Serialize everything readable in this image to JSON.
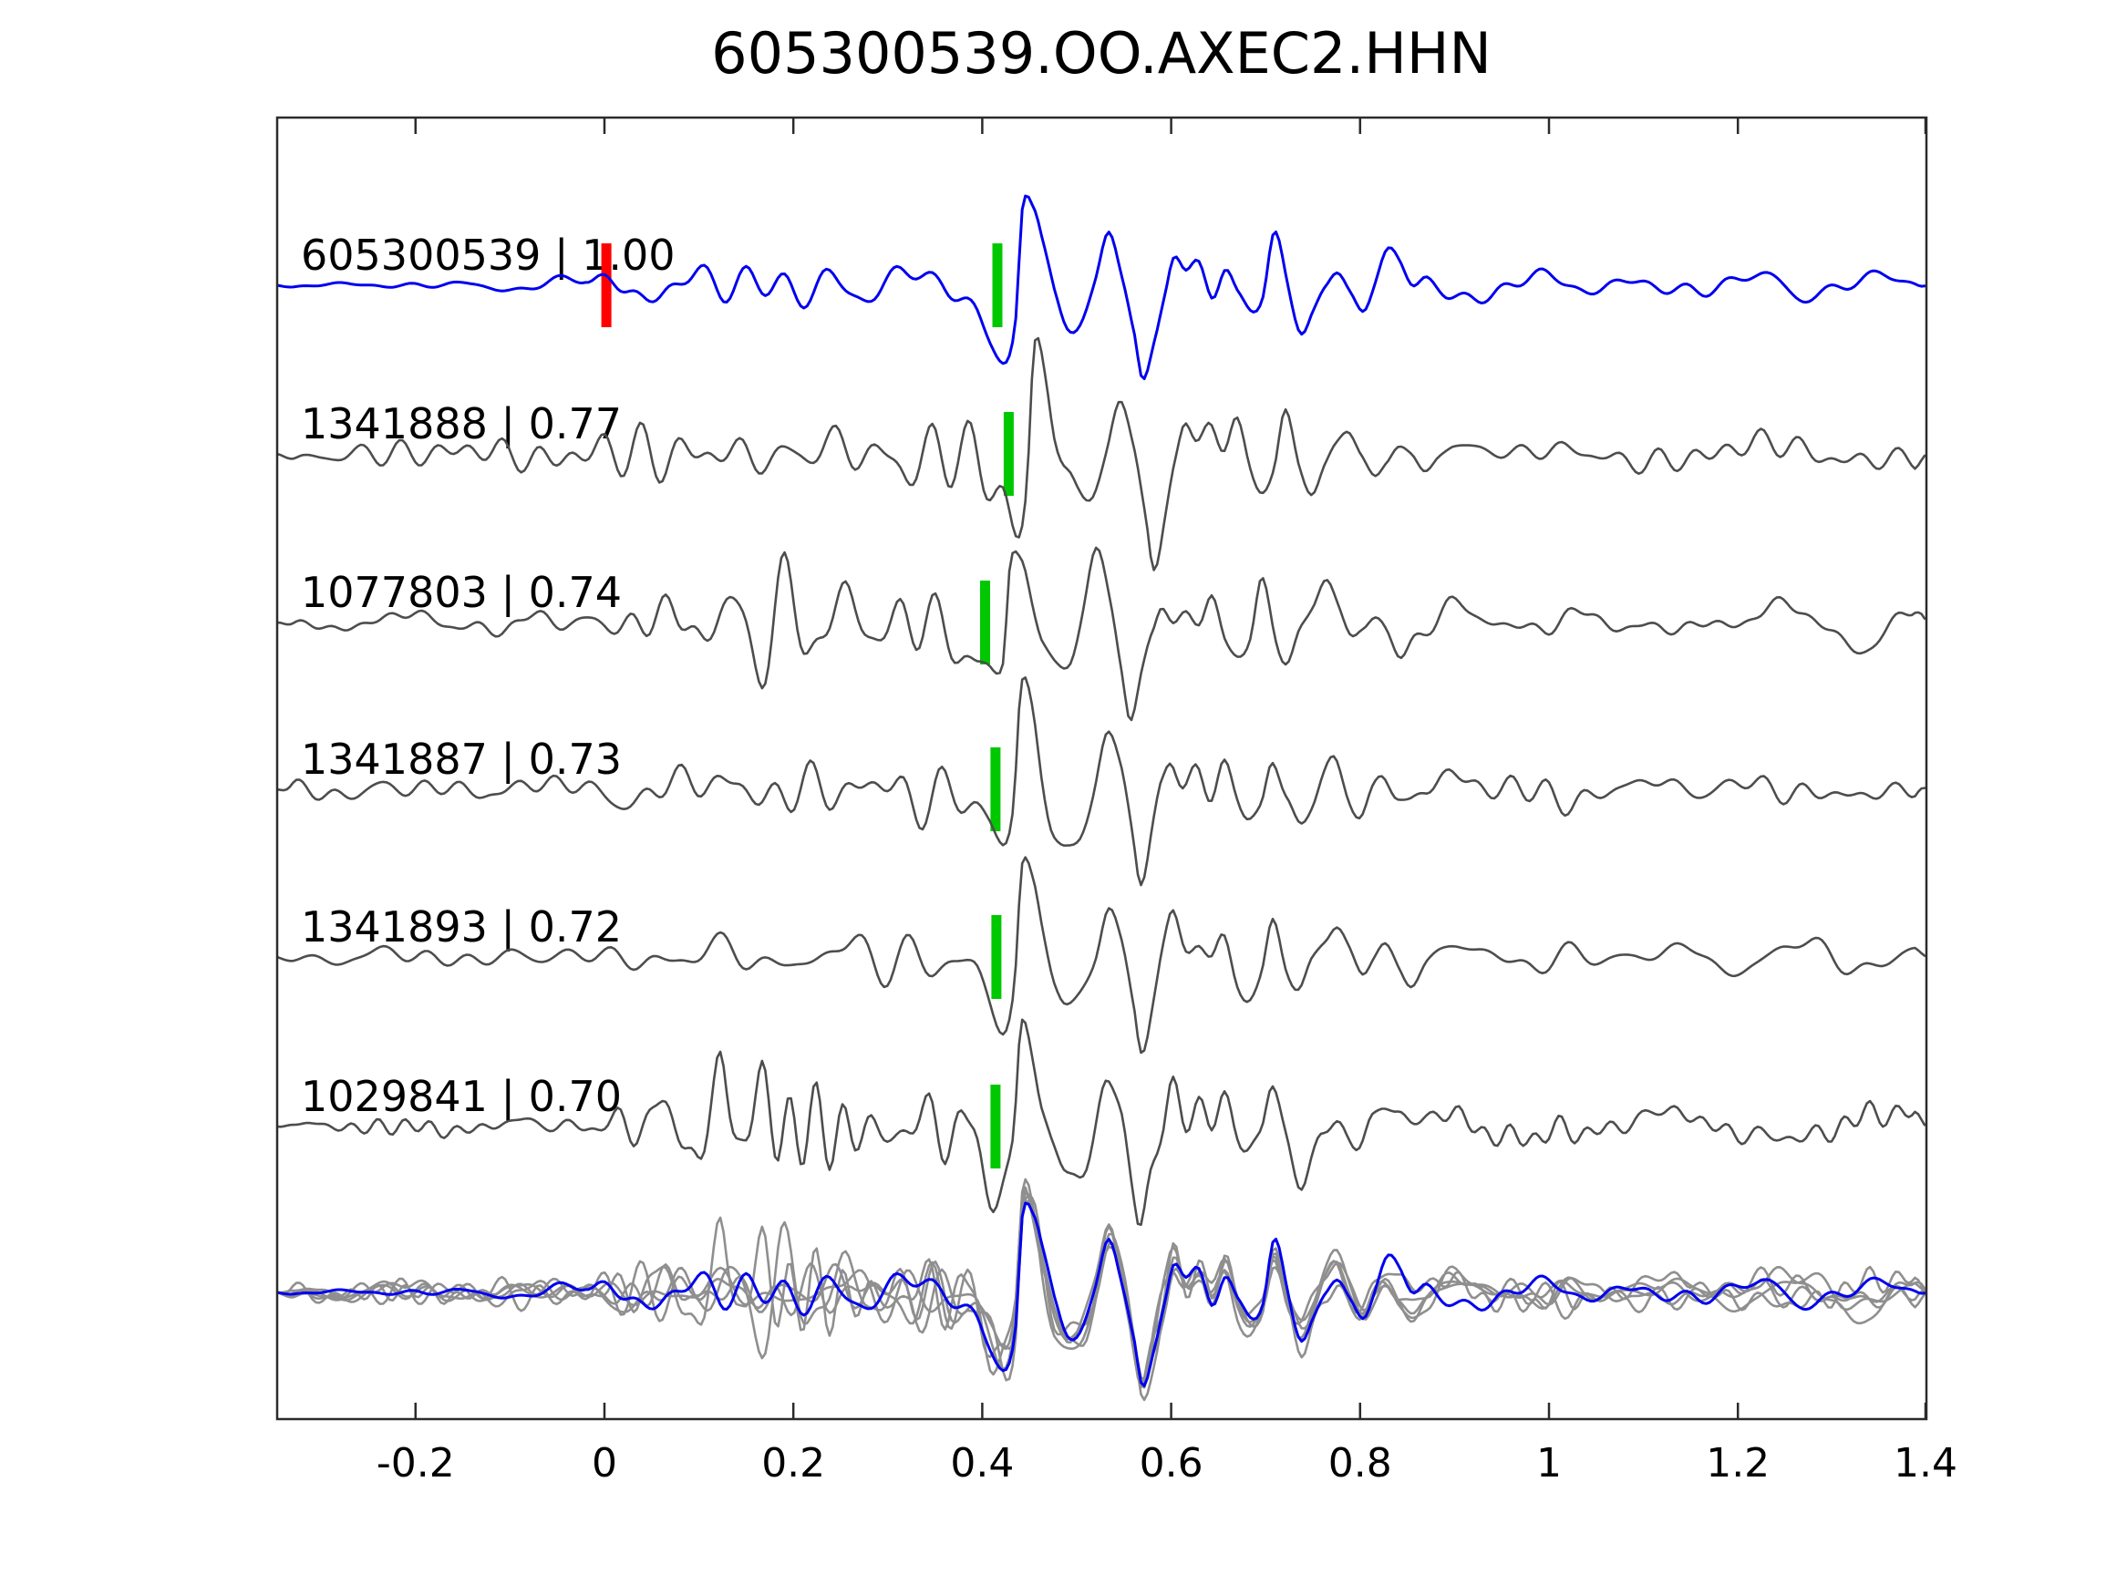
{
  "title": "605300539.OO.AXEC2.HHN",
  "colors": {
    "background": "#ffffff",
    "template_trace": "#0000f0",
    "detection_trace": "#4d4d4d",
    "overlay_trace": "#8f8f8f",
    "pick_marker": "#00c800",
    "origin_marker": "#ff0000",
    "axis": "#2b2b2b",
    "text": "#000000"
  },
  "chart_data": {
    "type": "line",
    "title": "605300539.OO.AXEC2.HHN",
    "xlabel": "",
    "ylabel": "",
    "grid": false,
    "legend": false,
    "x_range": [
      -0.3465,
      1.3996
    ],
    "x_ticks": [
      {
        "value": -0.2,
        "label": "-0.2"
      },
      {
        "value": 0.0,
        "label": "0"
      },
      {
        "value": 0.2,
        "label": "0.2"
      },
      {
        "value": 0.4,
        "label": "0.4"
      },
      {
        "value": 0.6,
        "label": "0.6"
      },
      {
        "value": 0.8,
        "label": "0.8"
      },
      {
        "value": 1.0,
        "label": "1"
      },
      {
        "value": 1.2,
        "label": "1.2"
      },
      {
        "value": 1.4,
        "label": "1.4"
      }
    ],
    "rows": 7,
    "traces": [
      {
        "id": "605300539",
        "label": "605300539 | 1.00",
        "correlation": 1.0,
        "role": "template",
        "row": 0,
        "pick_time": 0.416,
        "origin_time": 0.002,
        "seed": 7,
        "amp": 100,
        "fast_freq": [
          13,
          30
        ],
        "envF": [
          [
            -0.3465,
            2
          ],
          [
            -0.02,
            3
          ],
          [
            0.02,
            16
          ],
          [
            0.2,
            20
          ],
          [
            0.38,
            22
          ],
          [
            0.45,
            10
          ],
          [
            0.62,
            8
          ],
          [
            1.0,
            7
          ],
          [
            1.4,
            6
          ]
        ],
        "envS": [
          [
            -0.3465,
            2
          ],
          [
            0,
            6
          ],
          [
            0.3,
            9
          ],
          [
            0.45,
            8
          ],
          [
            0.7,
            14
          ],
          [
            1.05,
            18
          ],
          [
            1.4,
            13
          ]
        ],
        "bumps": []
      },
      {
        "id": "1341888",
        "label": "1341888 | 0.77",
        "correlation": 0.77,
        "role": "detection",
        "row": 1,
        "pick_time": 0.428,
        "seed": 21,
        "amp": 105,
        "fast_freq": [
          13,
          30
        ],
        "envF": [
          [
            -0.3465,
            10
          ],
          [
            -0.02,
            11
          ],
          [
            0.05,
            18
          ],
          [
            0.2,
            22
          ],
          [
            0.32,
            32
          ],
          [
            0.405,
            26
          ],
          [
            0.5,
            10
          ],
          [
            0.8,
            9
          ],
          [
            1.4,
            8
          ]
        ],
        "envS": [
          [
            -0.3465,
            4
          ],
          [
            0.2,
            8
          ],
          [
            0.5,
            10
          ],
          [
            0.8,
            16
          ],
          [
            1.1,
            18
          ],
          [
            1.4,
            14
          ]
        ],
        "bumps": []
      },
      {
        "id": "1077803",
        "label": "1077803 | 0.74",
        "correlation": 0.74,
        "role": "detection",
        "row": 2,
        "pick_time": 0.403,
        "seed": 33,
        "amp": 100,
        "fast_freq": [
          14,
          32
        ],
        "envF": [
          [
            -0.3465,
            7
          ],
          [
            0,
            9
          ],
          [
            0.07,
            26
          ],
          [
            0.18,
            36
          ],
          [
            0.3,
            38
          ],
          [
            0.385,
            30
          ],
          [
            0.48,
            10
          ],
          [
            1.4,
            8
          ]
        ],
        "envS": [
          [
            -0.3465,
            4
          ],
          [
            0.2,
            8
          ],
          [
            0.5,
            11
          ],
          [
            0.8,
            16
          ],
          [
            1.1,
            18
          ],
          [
            1.4,
            14
          ]
        ],
        "bumps": []
      },
      {
        "id": "1341887",
        "label": "1341887 | 0.73",
        "correlation": 0.73,
        "role": "detection",
        "row": 3,
        "pick_time": 0.414,
        "seed": 44,
        "amp": 95,
        "fast_freq": [
          13,
          30
        ],
        "envF": [
          [
            -0.3465,
            8
          ],
          [
            0,
            9
          ],
          [
            0.05,
            14
          ],
          [
            0.25,
            20
          ],
          [
            0.38,
            26
          ],
          [
            0.48,
            10
          ],
          [
            1.4,
            8
          ]
        ],
        "envS": [
          [
            -0.3465,
            4
          ],
          [
            0.2,
            8
          ],
          [
            0.5,
            10
          ],
          [
            0.8,
            15
          ],
          [
            1.1,
            17
          ],
          [
            1.4,
            13
          ]
        ],
        "bumps": []
      },
      {
        "id": "1341893",
        "label": "1341893 | 0.72",
        "correlation": 0.72,
        "role": "detection",
        "row": 4,
        "pick_time": 0.415,
        "seed": 55,
        "amp": 95,
        "fast_freq": [
          13,
          30
        ],
        "envF": [
          [
            -0.3465,
            9
          ],
          [
            0,
            10
          ],
          [
            0.05,
            15
          ],
          [
            0.25,
            20
          ],
          [
            0.38,
            26
          ],
          [
            0.48,
            10
          ],
          [
            1.4,
            8
          ]
        ],
        "envS": [
          [
            -0.3465,
            4
          ],
          [
            0.2,
            8
          ],
          [
            0.5,
            10
          ],
          [
            0.8,
            15
          ],
          [
            1.1,
            17
          ],
          [
            1.4,
            13
          ]
        ],
        "bumps": []
      },
      {
        "id": "1029841",
        "label": "1029841 | 0.70",
        "correlation": 0.7,
        "role": "detection",
        "row": 5,
        "pick_time": 0.414,
        "seed": 66,
        "amp": 100,
        "fast_freq": [
          18,
          40
        ],
        "envF": [
          [
            -0.3465,
            6
          ],
          [
            0,
            8
          ],
          [
            0.05,
            22
          ],
          [
            0.13,
            28
          ],
          [
            0.3,
            38
          ],
          [
            0.385,
            44
          ],
          [
            0.47,
            12
          ],
          [
            1.4,
            9
          ]
        ],
        "envS": [
          [
            -0.3465,
            3
          ],
          [
            0.2,
            8
          ],
          [
            0.5,
            10
          ],
          [
            0.8,
            16
          ],
          [
            1.1,
            18
          ],
          [
            1.4,
            14
          ]
        ],
        "bumps": [
          [
            0.058,
            30,
            0.01
          ],
          [
            0.105,
            -40,
            0.007
          ],
          [
            0.1235,
            92,
            0.0065
          ],
          [
            0.14,
            -52,
            0.007
          ],
          [
            0.158,
            28,
            0.009
          ]
        ]
      },
      {
        "id": "overlay",
        "label": "",
        "role": "overlay",
        "row": 6,
        "members": [
          1,
          2,
          3,
          4,
          5
        ],
        "template_member": 0,
        "aligned_pick_time": 0.416
      }
    ],
    "arrival_shape": [
      [
        -0.06,
        0
      ],
      [
        -0.04,
        -0.08
      ],
      [
        -0.022,
        -0.28
      ],
      [
        -0.008,
        -0.5
      ],
      [
        0.009,
        -0.72
      ],
      [
        0.019,
        -0.3
      ],
      [
        0.027,
        1.0
      ],
      [
        0.039,
        0.8
      ],
      [
        0.05,
        0.2
      ],
      [
        0.06,
        -0.25
      ],
      [
        0.073,
        -0.5
      ],
      [
        0.09,
        -0.42
      ],
      [
        0.103,
        -0.05
      ],
      [
        0.118,
        0.65
      ],
      [
        0.132,
        0.18
      ],
      [
        0.146,
        -0.55
      ],
      [
        0.154,
        -1.0
      ],
      [
        0.166,
        -0.55
      ],
      [
        0.178,
        0.0
      ],
      [
        0.187,
        0.36
      ],
      [
        0.2,
        0.1
      ],
      [
        0.213,
        0.16
      ],
      [
        0.227,
        -0.06
      ],
      [
        0.241,
        0.28
      ],
      [
        0.255,
        -0.18
      ],
      [
        0.268,
        -0.38
      ],
      [
        0.281,
        -0.18
      ],
      [
        0.293,
        0.44
      ],
      [
        0.308,
        -0.12
      ],
      [
        0.321,
        -0.46
      ],
      [
        0.334,
        -0.2
      ],
      [
        0.348,
        0.12
      ],
      [
        0.36,
        0.3
      ],
      [
        0.373,
        0.06
      ],
      [
        0.387,
        -0.16
      ],
      [
        0.4,
        0.06
      ],
      [
        0.412,
        0.22
      ],
      [
        0.426,
        0.04
      ],
      [
        0.44,
        -0.2
      ],
      [
        0.455,
        -0.06
      ],
      [
        0.47,
        0
      ]
    ],
    "pick_marker_height_px": 92,
    "pick_marker_width_px": 11
  }
}
